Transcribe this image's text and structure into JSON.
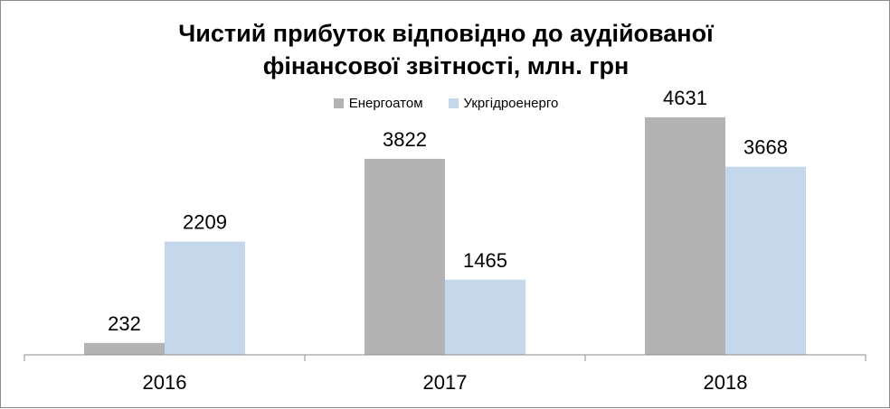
{
  "chart_data": {
    "type": "bar",
    "title_line1": "Чистий прибуток відповідно до аудійованої",
    "title_line2": "фінансової звітності, млн. грн",
    "categories": [
      "2016",
      "2017",
      "2018"
    ],
    "series": [
      {
        "name": "Енергоатом",
        "values": [
          232,
          3822,
          4631
        ],
        "color": "#b3b3b3"
      },
      {
        "name": "Укргідроенерго",
        "values": [
          2209,
          1465,
          3668
        ],
        "color": "#c5d7ea"
      }
    ],
    "ylim": [
      0,
      5000
    ],
    "grid": false,
    "legend_position": "top"
  }
}
